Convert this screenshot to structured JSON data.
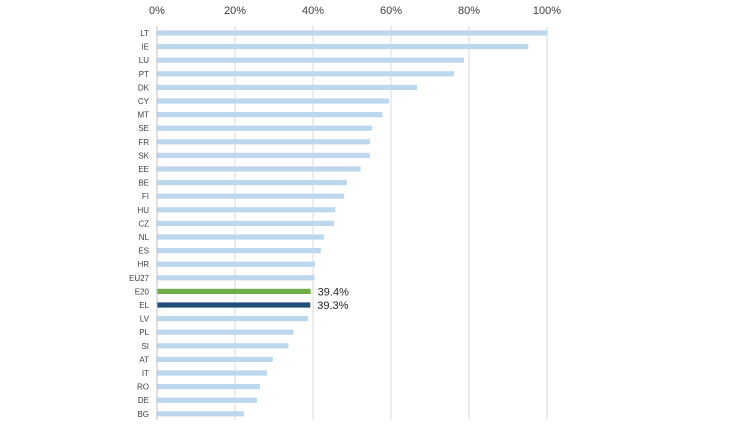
{
  "chart_data": {
    "type": "bar",
    "orientation": "horizontal",
    "categories": [
      "LT",
      "IE",
      "LU",
      "PT",
      "DK",
      "CY",
      "MT",
      "SE",
      "FR",
      "SK",
      "EE",
      "BE",
      "FI",
      "HU",
      "CZ",
      "NL",
      "ES",
      "HR",
      "EU27",
      "E20",
      "EL",
      "LV",
      "PL",
      "SI",
      "AT",
      "IT",
      "RO",
      "DE",
      "BG"
    ],
    "values": [
      1.0,
      0.952,
      0.787,
      0.762,
      0.667,
      0.595,
      0.578,
      0.552,
      0.546,
      0.546,
      0.522,
      0.487,
      0.48,
      0.457,
      0.454,
      0.428,
      0.42,
      0.405,
      0.404,
      0.394,
      0.393,
      0.387,
      0.35,
      0.337,
      0.297,
      0.282,
      0.264,
      0.256,
      0.223
    ],
    "bar_colors": [
      "#bdd7ee",
      "#bdd7ee",
      "#bdd7ee",
      "#bdd7ee",
      "#bdd7ee",
      "#bdd7ee",
      "#bdd7ee",
      "#bdd7ee",
      "#bdd7ee",
      "#bdd7ee",
      "#bdd7ee",
      "#bdd7ee",
      "#bdd7ee",
      "#bdd7ee",
      "#bdd7ee",
      "#bdd7ee",
      "#bdd7ee",
      "#bdd7ee",
      "#bdd7ee",
      "#70ad47",
      "#1f4e79",
      "#bdd7ee",
      "#bdd7ee",
      "#bdd7ee",
      "#bdd7ee",
      "#bdd7ee",
      "#bdd7ee",
      "#bdd7ee",
      "#bdd7ee"
    ],
    "data_labels": [
      "",
      "",
      "",
      "",
      "",
      "",
      "",
      "",
      "",
      "",
      "",
      "",
      "",
      "",
      "",
      "",
      "",
      "",
      "",
      "39.4%",
      "39.3%",
      "",
      "",
      "",
      "",
      "",
      "",
      "",
      ""
    ],
    "x_ticks": [
      0,
      0.2,
      0.4,
      0.6,
      0.8,
      1.0
    ],
    "x_tick_labels": [
      "0%",
      "20%",
      "40%",
      "60%",
      "80%",
      "100%"
    ],
    "xlim": [
      0,
      1
    ],
    "x_axis_position": "top",
    "grid": true,
    "legend": "none",
    "title": "",
    "xlabel": "",
    "ylabel": ""
  }
}
